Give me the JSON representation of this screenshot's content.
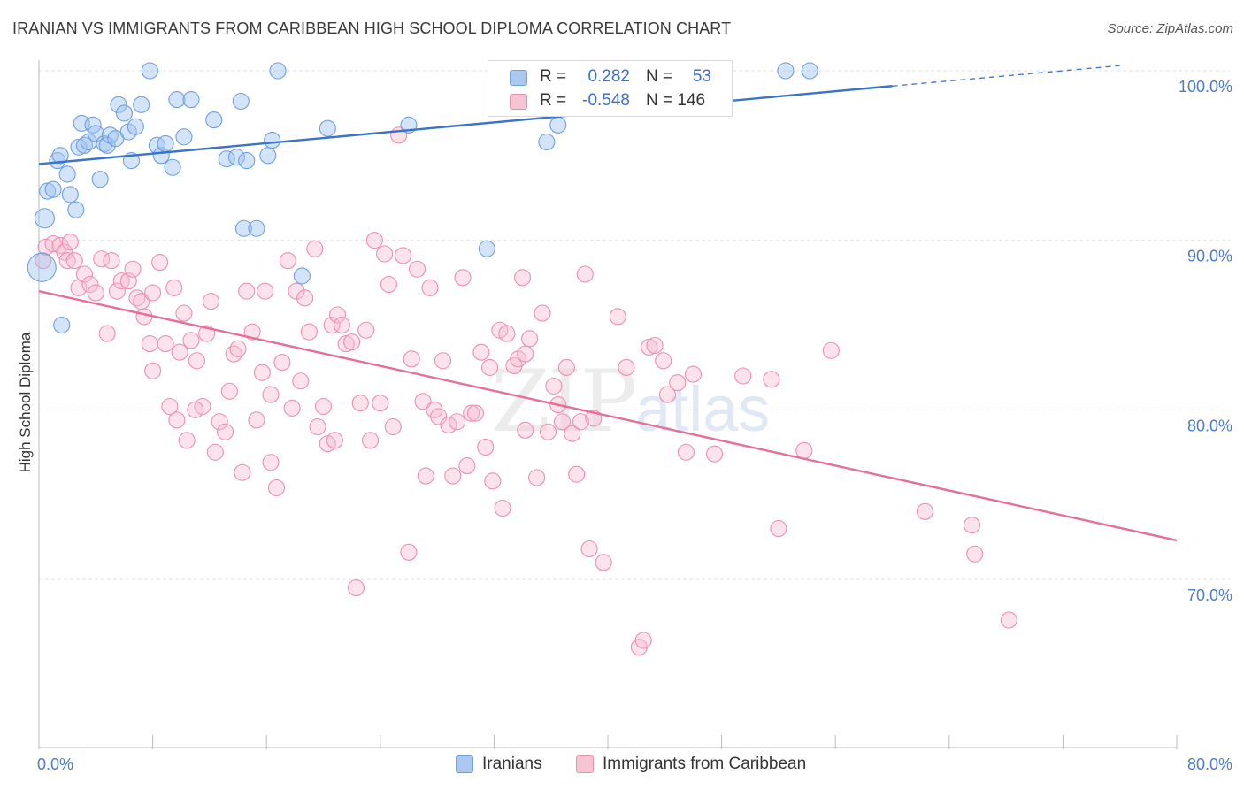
{
  "title": "IRANIAN VS IMMIGRANTS FROM CARIBBEAN HIGH SCHOOL DIPLOMA CORRELATION CHART",
  "source": "Source: ZipAtlas.com",
  "watermark": {
    "zip": "ZIP",
    "atlas": "atlas"
  },
  "legend": {
    "rows": [
      {
        "r_label": "R =",
        "r_value": "0.282",
        "n_label": "N =",
        "n_value": "53",
        "fill": "#aac8f0",
        "stroke": "#6f9fe0"
      },
      {
        "r_label": "R =",
        "r_value": "-0.548",
        "n_label": "N = 146",
        "n_value": "",
        "fill": "#f7c4d4",
        "stroke": "#ec8fad"
      }
    ]
  },
  "bottom_legend": [
    {
      "label": "Iranians",
      "fill": "#aac8f0",
      "stroke": "#6f9fe0"
    },
    {
      "label": "Immigrants from Caribbean",
      "fill": "#f7c4d4",
      "stroke": "#ec8fad"
    }
  ],
  "chart_data": {
    "type": "scatter",
    "title": "IRANIAN VS IMMIGRANTS FROM CARIBBEAN HIGH SCHOOL DIPLOMA CORRELATION CHART",
    "xlabel": "",
    "ylabel": "High School Diploma",
    "xlim": [
      0,
      80
    ],
    "ylim": [
      60,
      102
    ],
    "x_tick_labels": [
      {
        "value": 0,
        "label": "0.0%"
      },
      {
        "value": 80,
        "label": "80.0%"
      }
    ],
    "y_tick_labels": [
      {
        "value": 100,
        "label": "100.0%"
      },
      {
        "value": 90,
        "label": "90.0%"
      },
      {
        "value": 80,
        "label": "80.0%"
      },
      {
        "value": 70,
        "label": "70.0%"
      }
    ],
    "grid": true,
    "legend_position": "top-center",
    "colors": {
      "iranians": "#3b73c8",
      "caribbean": "#e66f97"
    },
    "series": [
      {
        "name": "Iranians",
        "color": "#6f9fe0",
        "trend": {
          "x0": 0,
          "y0": 94.5,
          "x1": 60,
          "y1": 99.1,
          "dashed_to_x": 76,
          "dashed_to_y": 100.3
        },
        "points": [
          [
            0.2,
            88.4
          ],
          [
            0.4,
            91.3
          ],
          [
            0.6,
            92.9
          ],
          [
            1.0,
            93.0
          ],
          [
            1.3,
            94.7
          ],
          [
            1.5,
            95.0
          ],
          [
            1.6,
            85.0
          ],
          [
            2.0,
            93.9
          ],
          [
            2.2,
            92.7
          ],
          [
            2.6,
            91.8
          ],
          [
            2.8,
            95.5
          ],
          [
            3.0,
            96.9
          ],
          [
            3.2,
            95.6
          ],
          [
            3.5,
            95.8
          ],
          [
            3.8,
            96.8
          ],
          [
            4.0,
            96.3
          ],
          [
            4.3,
            93.6
          ],
          [
            4.6,
            95.7
          ],
          [
            4.8,
            95.6
          ],
          [
            5.0,
            96.2
          ],
          [
            5.4,
            96.0
          ],
          [
            5.6,
            98.0
          ],
          [
            6.0,
            97.5
          ],
          [
            6.3,
            96.4
          ],
          [
            6.5,
            94.7
          ],
          [
            6.8,
            96.7
          ],
          [
            7.2,
            98.0
          ],
          [
            7.8,
            100.0
          ],
          [
            8.3,
            95.6
          ],
          [
            8.6,
            95.0
          ],
          [
            8.9,
            95.7
          ],
          [
            9.4,
            94.3
          ],
          [
            9.7,
            98.3
          ],
          [
            10.2,
            96.1
          ],
          [
            10.7,
            98.3
          ],
          [
            12.3,
            97.1
          ],
          [
            13.2,
            94.8
          ],
          [
            13.9,
            94.9
          ],
          [
            14.2,
            98.2
          ],
          [
            14.4,
            90.7
          ],
          [
            14.6,
            94.7
          ],
          [
            15.3,
            90.7
          ],
          [
            16.1,
            95.0
          ],
          [
            16.4,
            95.9
          ],
          [
            16.8,
            100.0
          ],
          [
            18.5,
            87.9
          ],
          [
            20.3,
            96.6
          ],
          [
            26.0,
            96.8
          ],
          [
            31.5,
            89.5
          ],
          [
            35.7,
            95.8
          ],
          [
            36.5,
            96.8
          ],
          [
            52.5,
            100.0
          ],
          [
            54.2,
            100.0
          ]
        ]
      },
      {
        "name": "Immigrants from Caribbean",
        "color": "#ec8fad",
        "trend": {
          "x0": 0,
          "y0": 87.0,
          "x1": 80,
          "y1": 72.3
        },
        "points": [
          [
            0.3,
            88.8
          ],
          [
            0.5,
            89.6
          ],
          [
            1.0,
            89.8
          ],
          [
            1.5,
            89.7
          ],
          [
            1.8,
            89.3
          ],
          [
            2.0,
            88.8
          ],
          [
            2.2,
            89.9
          ],
          [
            2.5,
            88.8
          ],
          [
            2.8,
            87.2
          ],
          [
            3.2,
            88.0
          ],
          [
            3.6,
            87.4
          ],
          [
            4.0,
            86.9
          ],
          [
            4.4,
            88.9
          ],
          [
            4.8,
            84.5
          ],
          [
            5.1,
            88.8
          ],
          [
            5.5,
            87.0
          ],
          [
            5.8,
            87.6
          ],
          [
            6.3,
            87.6
          ],
          [
            6.6,
            88.3
          ],
          [
            6.9,
            86.6
          ],
          [
            7.2,
            86.4
          ],
          [
            7.4,
            85.5
          ],
          [
            7.8,
            83.9
          ],
          [
            8.0,
            86.9
          ],
          [
            8.5,
            88.7
          ],
          [
            8.9,
            83.9
          ],
          [
            9.2,
            80.2
          ],
          [
            9.5,
            87.2
          ],
          [
            9.9,
            83.4
          ],
          [
            10.2,
            85.7
          ],
          [
            10.4,
            78.2
          ],
          [
            10.7,
            84.1
          ],
          [
            11.1,
            82.9
          ],
          [
            11.5,
            80.2
          ],
          [
            11.8,
            84.5
          ],
          [
            12.1,
            86.4
          ],
          [
            12.4,
            77.5
          ],
          [
            12.7,
            79.3
          ],
          [
            13.1,
            78.7
          ],
          [
            13.4,
            81.1
          ],
          [
            13.7,
            83.3
          ],
          [
            14.0,
            83.6
          ],
          [
            14.3,
            76.3
          ],
          [
            14.6,
            87.0
          ],
          [
            15.0,
            84.6
          ],
          [
            15.3,
            79.4
          ],
          [
            15.7,
            82.2
          ],
          [
            15.9,
            87.0
          ],
          [
            16.3,
            80.9
          ],
          [
            16.7,
            75.4
          ],
          [
            17.1,
            82.8
          ],
          [
            17.5,
            88.8
          ],
          [
            17.8,
            80.1
          ],
          [
            18.1,
            87.0
          ],
          [
            18.4,
            81.7
          ],
          [
            18.7,
            86.6
          ],
          [
            19.0,
            84.6
          ],
          [
            19.4,
            89.5
          ],
          [
            19.6,
            79.0
          ],
          [
            20.0,
            80.2
          ],
          [
            20.3,
            78.0
          ],
          [
            20.6,
            85.0
          ],
          [
            21.0,
            85.6
          ],
          [
            21.3,
            85.0
          ],
          [
            21.6,
            83.9
          ],
          [
            22.0,
            84.0
          ],
          [
            22.3,
            69.5
          ],
          [
            22.6,
            80.4
          ],
          [
            23.0,
            84.7
          ],
          [
            23.3,
            78.2
          ],
          [
            23.6,
            90.0
          ],
          [
            24.0,
            80.4
          ],
          [
            24.3,
            89.2
          ],
          [
            24.6,
            87.4
          ],
          [
            24.9,
            79.0
          ],
          [
            25.3,
            96.2
          ],
          [
            25.6,
            89.1
          ],
          [
            26.0,
            71.6
          ],
          [
            26.2,
            83.0
          ],
          [
            26.6,
            88.3
          ],
          [
            27.0,
            80.5
          ],
          [
            27.2,
            76.1
          ],
          [
            27.5,
            87.2
          ],
          [
            27.8,
            80.0
          ],
          [
            28.1,
            79.6
          ],
          [
            28.4,
            82.9
          ],
          [
            28.8,
            79.1
          ],
          [
            29.1,
            76.1
          ],
          [
            29.4,
            79.3
          ],
          [
            29.8,
            87.8
          ],
          [
            30.1,
            76.7
          ],
          [
            30.4,
            79.8
          ],
          [
            30.7,
            79.8
          ],
          [
            31.1,
            83.4
          ],
          [
            31.4,
            77.8
          ],
          [
            31.7,
            82.5
          ],
          [
            31.9,
            75.8
          ],
          [
            32.4,
            84.7
          ],
          [
            32.6,
            74.2
          ],
          [
            32.9,
            84.5
          ],
          [
            33.4,
            82.6
          ],
          [
            33.7,
            83.0
          ],
          [
            34.0,
            87.8
          ],
          [
            34.2,
            83.3
          ],
          [
            34.5,
            84.2
          ],
          [
            35.0,
            76.0
          ],
          [
            35.4,
            85.7
          ],
          [
            35.8,
            78.7
          ],
          [
            36.2,
            81.4
          ],
          [
            36.5,
            80.3
          ],
          [
            36.8,
            79.3
          ],
          [
            37.1,
            82.5
          ],
          [
            37.5,
            78.6
          ],
          [
            37.8,
            76.2
          ],
          [
            38.1,
            79.3
          ],
          [
            38.4,
            88.0
          ],
          [
            38.7,
            71.8
          ],
          [
            39.0,
            79.5
          ],
          [
            39.7,
            71.0
          ],
          [
            40.7,
            85.5
          ],
          [
            41.3,
            82.5
          ],
          [
            42.2,
            66.0
          ],
          [
            42.5,
            66.4
          ],
          [
            42.9,
            83.7
          ],
          [
            43.3,
            83.8
          ],
          [
            43.9,
            82.9
          ],
          [
            44.2,
            80.9
          ],
          [
            44.9,
            81.6
          ],
          [
            45.5,
            77.5
          ],
          [
            46.0,
            82.1
          ],
          [
            47.5,
            77.4
          ],
          [
            49.5,
            82.0
          ],
          [
            51.5,
            81.8
          ],
          [
            52.0,
            73.0
          ],
          [
            53.8,
            77.6
          ],
          [
            55.7,
            83.5
          ],
          [
            62.3,
            74.0
          ],
          [
            65.6,
            73.2
          ],
          [
            65.8,
            71.5
          ],
          [
            68.2,
            67.6
          ],
          [
            34.2,
            78.8
          ],
          [
            20.8,
            78.2
          ],
          [
            9.7,
            79.4
          ],
          [
            16.3,
            76.9
          ],
          [
            11.0,
            80.0
          ],
          [
            8.0,
            82.3
          ]
        ]
      }
    ]
  }
}
